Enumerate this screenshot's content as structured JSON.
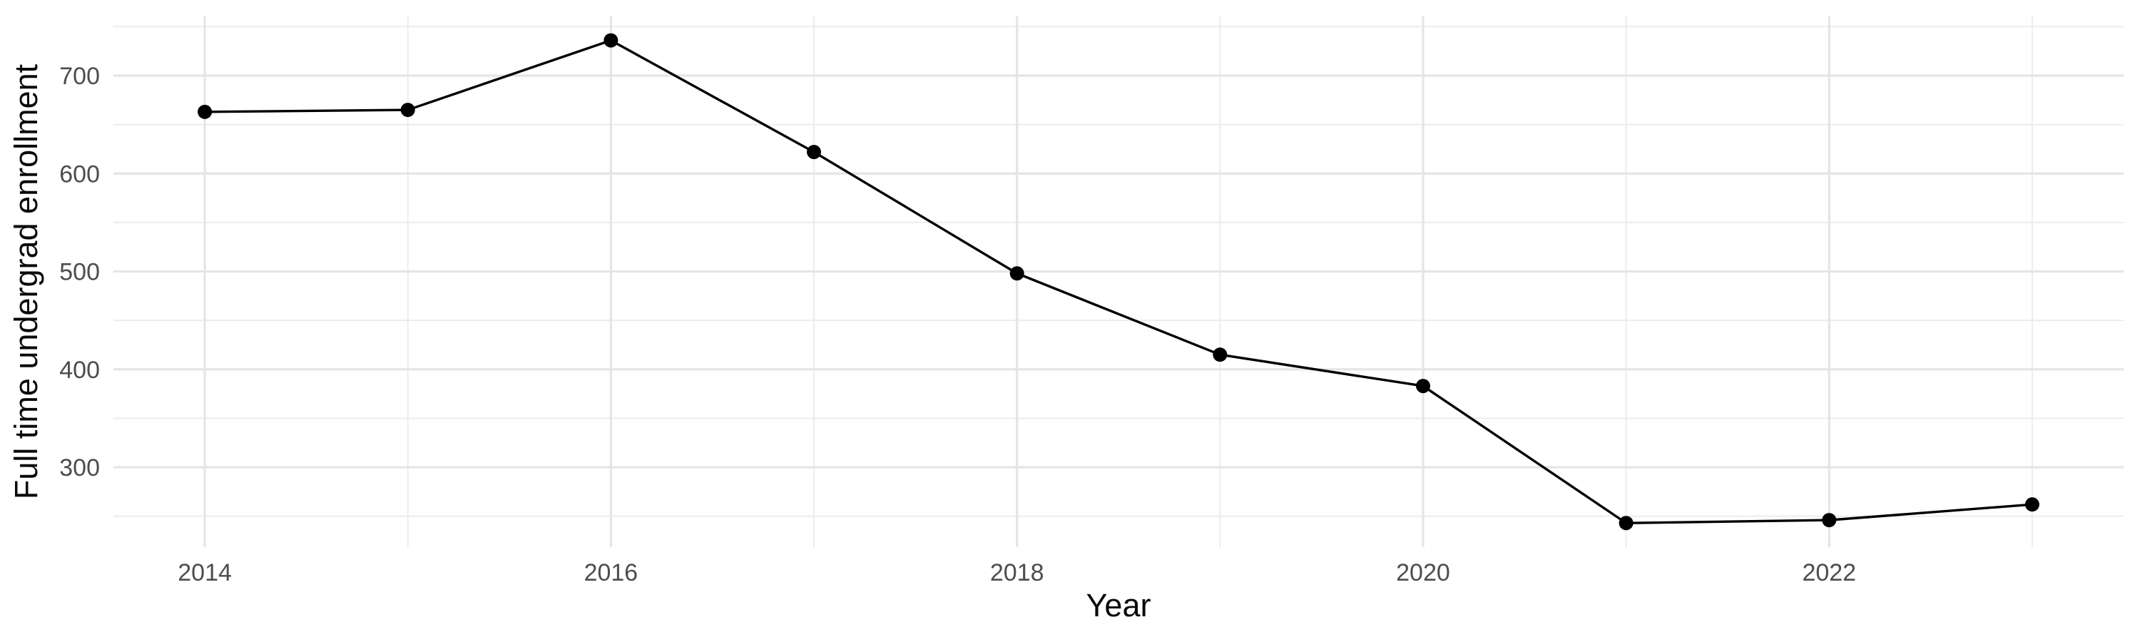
{
  "chart_data": {
    "type": "line",
    "title": "",
    "xlabel": "Year",
    "ylabel": "Full time undergrad enrollment",
    "x": [
      2014,
      2015,
      2016,
      2017,
      2018,
      2019,
      2020,
      2021,
      2022,
      2023
    ],
    "series": [
      {
        "name": "Full time undergrad enrollment",
        "values": [
          663,
          665,
          736,
          622,
          498,
          415,
          383,
          243,
          246,
          262
        ]
      }
    ],
    "xlim": [
      2013.55,
      2023.45
    ],
    "ylim": [
      218.4,
      760.5
    ],
    "x_tick_values": [
      2014,
      2016,
      2018,
      2020,
      2022
    ],
    "x_tick_labels": [
      "2014",
      "2016",
      "2018",
      "2020",
      "2022"
    ],
    "y_tick_values": [
      300,
      400,
      500,
      600,
      700
    ],
    "y_tick_labels": [
      "300",
      "400",
      "500",
      "600",
      "700"
    ],
    "x_grid_major": [
      2014,
      2016,
      2018,
      2020,
      2022
    ],
    "x_grid_minor": [
      2015,
      2017,
      2019,
      2021,
      2023
    ],
    "y_grid_major": [
      300,
      400,
      500,
      600,
      700
    ],
    "y_grid_minor": [
      250,
      350,
      450,
      550,
      650,
      750
    ],
    "grid": true,
    "legend": false,
    "colors": {
      "line": "#000000",
      "point": "#000000",
      "grid_major": "#e5e5e5",
      "grid_minor": "#ececec",
      "tick_text": "#4d4d4d",
      "title_text": "#0a0a0a",
      "background": "#ffffff"
    }
  }
}
